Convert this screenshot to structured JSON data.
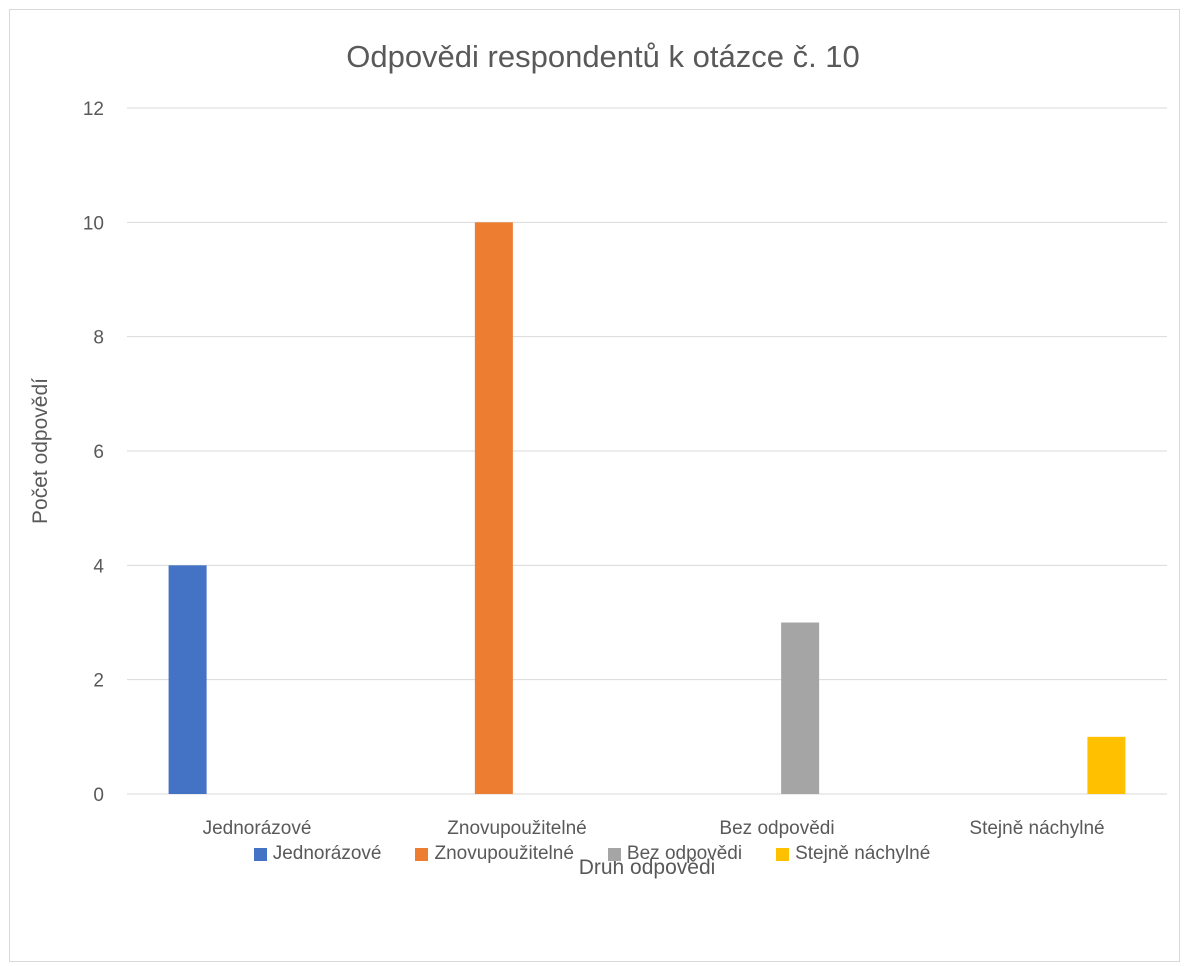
{
  "chart_data": {
    "type": "bar",
    "title": "Odpovědi respondentů k otázce č. 10",
    "xlabel": "Druh odpovědi",
    "ylabel": "Počet odpovědí",
    "ylim": [
      0,
      12
    ],
    "yticks": [
      "0",
      "2",
      "4",
      "6",
      "8",
      "10",
      "12"
    ],
    "categories": [
      "Jednorázové",
      "Znovupoužitelné",
      "Bez odpovědi",
      "Stejně náchylné"
    ],
    "grid": true,
    "legend_position": "bottom",
    "series": [
      {
        "name": "Jednorázové",
        "color": "#4472C4",
        "values": [
          4,
          0,
          0,
          0
        ]
      },
      {
        "name": "Znovupoužitelné",
        "color": "#ED7D31",
        "values": [
          0,
          10,
          0,
          0
        ]
      },
      {
        "name": "Bez odpovědi",
        "color": "#A5A5A5",
        "values": [
          0,
          0,
          3,
          0
        ]
      },
      {
        "name": "Stejně náchylné",
        "color": "#FFC000",
        "values": [
          0,
          0,
          0,
          1
        ]
      }
    ]
  }
}
